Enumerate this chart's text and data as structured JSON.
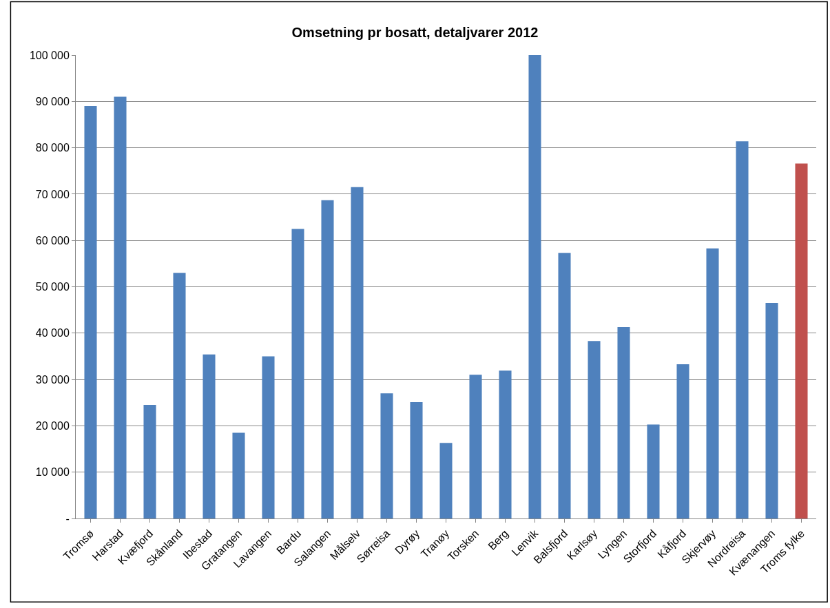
{
  "chart_data": {
    "type": "bar",
    "title": "Omsetning pr bosatt, detaljvarer 2012",
    "categories": [
      "Tromsø",
      "Harstad",
      "Kvæfjord",
      "Skånland",
      "Ibestad",
      "Gratangen",
      "Lavangen",
      "Bardu",
      "Salangen",
      "Målselv",
      "Sørreisa",
      "Dyrøy",
      "Tranøy",
      "Torsken",
      "Berg",
      "Lenvik",
      "Balsfjord",
      "Karlsøy",
      "Lyngen",
      "Storfjord",
      "Kåfjord",
      "Skjervøy",
      "Nordreisa",
      "Kvænangen",
      "Troms fylke"
    ],
    "values": [
      89000,
      91000,
      24500,
      53000,
      35400,
      18500,
      35000,
      62500,
      68700,
      71500,
      27000,
      25100,
      16300,
      31000,
      31900,
      100000,
      57300,
      38300,
      41300,
      20300,
      33300,
      58300,
      81400,
      46500,
      76600
    ],
    "colors": [
      "#4f81bd",
      "#4f81bd",
      "#4f81bd",
      "#4f81bd",
      "#4f81bd",
      "#4f81bd",
      "#4f81bd",
      "#4f81bd",
      "#4f81bd",
      "#4f81bd",
      "#4f81bd",
      "#4f81bd",
      "#4f81bd",
      "#4f81bd",
      "#4f81bd",
      "#4f81bd",
      "#4f81bd",
      "#4f81bd",
      "#4f81bd",
      "#4f81bd",
      "#4f81bd",
      "#4f81bd",
      "#4f81bd",
      "#4f81bd",
      "#c0504d"
    ],
    "ylim": [
      0,
      100000
    ],
    "yticks": [
      {
        "value": 0,
        "label": "-"
      },
      {
        "value": 10000,
        "label": "10 000"
      },
      {
        "value": 20000,
        "label": "20 000"
      },
      {
        "value": 30000,
        "label": "30 000"
      },
      {
        "value": 40000,
        "label": "40 000"
      },
      {
        "value": 50000,
        "label": "50 000"
      },
      {
        "value": 60000,
        "label": "60 000"
      },
      {
        "value": 70000,
        "label": "70 000"
      },
      {
        "value": 80000,
        "label": "80 000"
      },
      {
        "value": 90000,
        "label": "90 000"
      },
      {
        "value": 100000,
        "label": "100 000"
      }
    ],
    "grid": "y",
    "legend": false
  }
}
